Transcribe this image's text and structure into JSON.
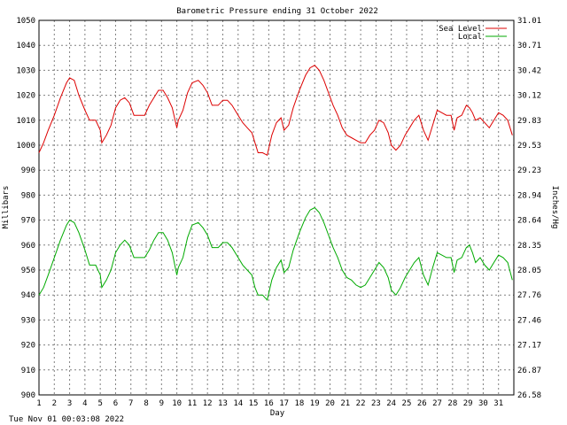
{
  "chart_data": {
    "type": "line",
    "title": "Barometric Pressure ending 31 October 2022",
    "xlabel": "Day",
    "ylabel": "Millibars",
    "ylabel_right": "Inches/Hg",
    "xlim": [
      1,
      32
    ],
    "ylim": [
      900,
      1050
    ],
    "x_ticks": [
      "1",
      "2",
      "3",
      "4",
      "5",
      "6",
      "7",
      "8",
      "9",
      "10",
      "11",
      "12",
      "13",
      "14",
      "15",
      "16",
      "17",
      "18",
      "19",
      "20",
      "21",
      "22",
      "23",
      "24",
      "25",
      "26",
      "27",
      "28",
      "29",
      "30",
      "31"
    ],
    "y_ticks": [
      "900",
      "910",
      "920",
      "930",
      "940",
      "950",
      "960",
      "970",
      "980",
      "990",
      "1000",
      "1010",
      "1020",
      "1030",
      "1040",
      "1050"
    ],
    "y_ticks_right": [
      "26.58",
      "26.87",
      "27.17",
      "27.46",
      "27.76",
      "28.05",
      "28.35",
      "28.64",
      "28.94",
      "29.23",
      "29.53",
      "29.83",
      "30.12",
      "30.42",
      "30.71",
      "31.01"
    ],
    "grid": true,
    "legend_position": "top-right",
    "series": [
      {
        "name": "Sea Level",
        "color": "#dd0000",
        "points": [
          [
            1.0,
            997
          ],
          [
            1.3,
            1001
          ],
          [
            1.6,
            1006
          ],
          [
            2.0,
            1012
          ],
          [
            2.4,
            1019
          ],
          [
            2.8,
            1025
          ],
          [
            3.0,
            1027
          ],
          [
            3.3,
            1026
          ],
          [
            3.6,
            1020
          ],
          [
            4.0,
            1014
          ],
          [
            4.3,
            1010
          ],
          [
            4.7,
            1010
          ],
          [
            5.0,
            1006
          ],
          [
            5.1,
            1001
          ],
          [
            5.4,
            1004
          ],
          [
            5.7,
            1008
          ],
          [
            6.0,
            1015
          ],
          [
            6.3,
            1018
          ],
          [
            6.6,
            1019
          ],
          [
            6.9,
            1017
          ],
          [
            7.2,
            1012
          ],
          [
            7.5,
            1012
          ],
          [
            7.9,
            1012
          ],
          [
            8.2,
            1016
          ],
          [
            8.5,
            1019
          ],
          [
            8.8,
            1022
          ],
          [
            9.1,
            1022
          ],
          [
            9.4,
            1019
          ],
          [
            9.7,
            1015
          ],
          [
            10.0,
            1007
          ],
          [
            10.1,
            1010
          ],
          [
            10.4,
            1014
          ],
          [
            10.7,
            1021
          ],
          [
            11.0,
            1025
          ],
          [
            11.4,
            1026
          ],
          [
            11.7,
            1024
          ],
          [
            12.0,
            1021
          ],
          [
            12.3,
            1016
          ],
          [
            12.7,
            1016
          ],
          [
            13.0,
            1018
          ],
          [
            13.3,
            1018
          ],
          [
            13.6,
            1016
          ],
          [
            14.0,
            1012
          ],
          [
            14.3,
            1009
          ],
          [
            14.6,
            1007
          ],
          [
            14.9,
            1005
          ],
          [
            15.1,
            1001
          ],
          [
            15.3,
            997
          ],
          [
            15.6,
            997
          ],
          [
            15.9,
            996
          ],
          [
            16.2,
            1004
          ],
          [
            16.5,
            1009
          ],
          [
            16.8,
            1011
          ],
          [
            17.0,
            1006
          ],
          [
            17.3,
            1008
          ],
          [
            17.6,
            1015
          ],
          [
            18.0,
            1022
          ],
          [
            18.4,
            1028
          ],
          [
            18.7,
            1031
          ],
          [
            19.0,
            1032
          ],
          [
            19.3,
            1030
          ],
          [
            19.6,
            1026
          ],
          [
            19.9,
            1021
          ],
          [
            20.2,
            1016
          ],
          [
            20.5,
            1012
          ],
          [
            20.8,
            1007
          ],
          [
            21.1,
            1004
          ],
          [
            21.4,
            1003
          ],
          [
            21.7,
            1002
          ],
          [
            22.0,
            1001
          ],
          [
            22.3,
            1001
          ],
          [
            22.6,
            1004
          ],
          [
            22.9,
            1006
          ],
          [
            23.2,
            1010
          ],
          [
            23.5,
            1009
          ],
          [
            23.8,
            1005
          ],
          [
            24.0,
            1000
          ],
          [
            24.3,
            998
          ],
          [
            24.6,
            1000
          ],
          [
            24.9,
            1004
          ],
          [
            25.2,
            1007
          ],
          [
            25.5,
            1010
          ],
          [
            25.8,
            1012
          ],
          [
            26.1,
            1006
          ],
          [
            26.4,
            1002
          ],
          [
            26.7,
            1008
          ],
          [
            27.0,
            1014
          ],
          [
            27.3,
            1013
          ],
          [
            27.6,
            1012
          ],
          [
            27.9,
            1012
          ],
          [
            28.1,
            1006
          ],
          [
            28.3,
            1011
          ],
          [
            28.6,
            1012
          ],
          [
            28.9,
            1016
          ],
          [
            29.1,
            1015
          ],
          [
            29.3,
            1013
          ],
          [
            29.5,
            1010
          ],
          [
            29.8,
            1011
          ],
          [
            30.1,
            1009
          ],
          [
            30.4,
            1007
          ],
          [
            30.7,
            1010
          ],
          [
            31.0,
            1013
          ],
          [
            31.3,
            1012
          ],
          [
            31.6,
            1010
          ],
          [
            31.9,
            1004
          ]
        ]
      },
      {
        "name": "Local",
        "color": "#00aa00",
        "points": [
          [
            1.0,
            940
          ],
          [
            1.3,
            943
          ],
          [
            1.6,
            948
          ],
          [
            2.0,
            955
          ],
          [
            2.4,
            962
          ],
          [
            2.8,
            968
          ],
          [
            3.0,
            970
          ],
          [
            3.3,
            969
          ],
          [
            3.6,
            965
          ],
          [
            4.0,
            958
          ],
          [
            4.3,
            952
          ],
          [
            4.7,
            952
          ],
          [
            5.0,
            948
          ],
          [
            5.1,
            943
          ],
          [
            5.4,
            946
          ],
          [
            5.7,
            950
          ],
          [
            6.0,
            957
          ],
          [
            6.3,
            960
          ],
          [
            6.6,
            962
          ],
          [
            6.9,
            960
          ],
          [
            7.2,
            955
          ],
          [
            7.5,
            955
          ],
          [
            7.9,
            955
          ],
          [
            8.2,
            958
          ],
          [
            8.5,
            962
          ],
          [
            8.8,
            965
          ],
          [
            9.1,
            965
          ],
          [
            9.4,
            962
          ],
          [
            9.7,
            957
          ],
          [
            10.0,
            948
          ],
          [
            10.1,
            951
          ],
          [
            10.4,
            955
          ],
          [
            10.7,
            963
          ],
          [
            11.0,
            968
          ],
          [
            11.4,
            969
          ],
          [
            11.7,
            967
          ],
          [
            12.0,
            964
          ],
          [
            12.3,
            959
          ],
          [
            12.7,
            959
          ],
          [
            13.0,
            961
          ],
          [
            13.3,
            961
          ],
          [
            13.6,
            959
          ],
          [
            14.0,
            955
          ],
          [
            14.3,
            952
          ],
          [
            14.6,
            950
          ],
          [
            14.9,
            948
          ],
          [
            15.1,
            943
          ],
          [
            15.3,
            940
          ],
          [
            15.6,
            940
          ],
          [
            15.9,
            938
          ],
          [
            16.2,
            946
          ],
          [
            16.5,
            951
          ],
          [
            16.8,
            954
          ],
          [
            17.0,
            949
          ],
          [
            17.3,
            951
          ],
          [
            17.6,
            958
          ],
          [
            18.0,
            965
          ],
          [
            18.4,
            971
          ],
          [
            18.7,
            974
          ],
          [
            19.0,
            975
          ],
          [
            19.3,
            973
          ],
          [
            19.6,
            969
          ],
          [
            19.9,
            964
          ],
          [
            20.2,
            959
          ],
          [
            20.5,
            955
          ],
          [
            20.8,
            950
          ],
          [
            21.1,
            947
          ],
          [
            21.4,
            946
          ],
          [
            21.7,
            944
          ],
          [
            22.0,
            943
          ],
          [
            22.3,
            944
          ],
          [
            22.6,
            947
          ],
          [
            22.9,
            950
          ],
          [
            23.2,
            953
          ],
          [
            23.5,
            951
          ],
          [
            23.8,
            947
          ],
          [
            24.0,
            942
          ],
          [
            24.3,
            940
          ],
          [
            24.6,
            943
          ],
          [
            24.9,
            947
          ],
          [
            25.2,
            950
          ],
          [
            25.5,
            953
          ],
          [
            25.8,
            955
          ],
          [
            26.1,
            948
          ],
          [
            26.4,
            944
          ],
          [
            26.7,
            951
          ],
          [
            27.0,
            957
          ],
          [
            27.3,
            956
          ],
          [
            27.6,
            955
          ],
          [
            27.9,
            955
          ],
          [
            28.1,
            949
          ],
          [
            28.3,
            954
          ],
          [
            28.6,
            955
          ],
          [
            28.9,
            959
          ],
          [
            29.1,
            960
          ],
          [
            29.3,
            957
          ],
          [
            29.5,
            953
          ],
          [
            29.8,
            955
          ],
          [
            30.1,
            952
          ],
          [
            30.4,
            950
          ],
          [
            30.7,
            953
          ],
          [
            31.0,
            956
          ],
          [
            31.3,
            955
          ],
          [
            31.6,
            953
          ],
          [
            31.9,
            946
          ]
        ]
      }
    ]
  },
  "footer": {
    "timestamp": "Tue Nov 01 00:03:08 2022"
  }
}
